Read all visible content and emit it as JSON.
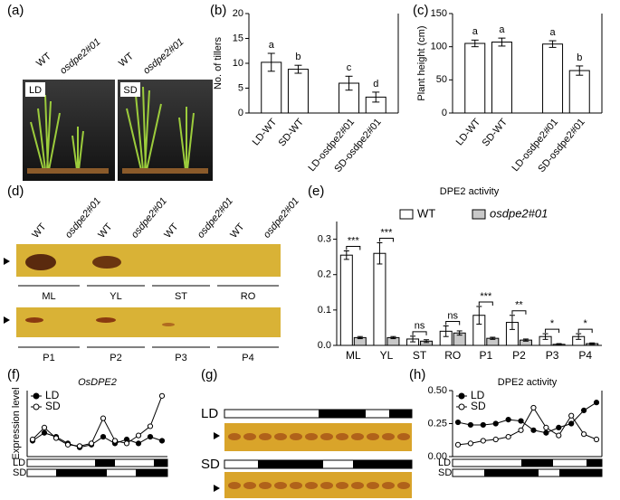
{
  "figure": {
    "panel_labels": [
      "(a)",
      "(b)",
      "(c)",
      "(d)",
      "(e)",
      "(f)",
      "(g)",
      "(h)"
    ],
    "photo": {
      "genotypes": [
        "WT",
        "osdpe2#01",
        "WT",
        "osdpe2#01"
      ],
      "conditions": [
        "LD",
        "SD"
      ]
    },
    "gel_d": {
      "lanes": [
        "WT",
        "osdpe2#01",
        "WT",
        "osdpe2#01",
        "WT",
        "osdpe2#01",
        "WT",
        "osdpe2#01"
      ],
      "row1": [
        "ML",
        "YL",
        "ST",
        "RO"
      ],
      "row2": [
        "P1",
        "P2",
        "P3",
        "P4"
      ]
    },
    "gel_g": {
      "rows": [
        "LD",
        "SD"
      ]
    },
    "light_f": [
      "LD",
      "SD"
    ],
    "light_h": [
      "LD",
      "SD"
    ]
  },
  "chart_data": [
    {
      "type": "bar",
      "ylabel": "No. of tillers",
      "categories": [
        "LD-WT",
        "SD-WT",
        "LD-osdpe2#01",
        "SD-osdpe2#01"
      ],
      "values": [
        10.2,
        8.8,
        6.0,
        3.2
      ],
      "errors": [
        1.8,
        0.8,
        1.4,
        1.0
      ],
      "letters": [
        "a",
        "b",
        "c",
        "d"
      ],
      "ylim": [
        0,
        20
      ],
      "yticks": [
        0,
        5,
        10,
        15,
        20
      ],
      "color": "#ffffff"
    },
    {
      "type": "bar",
      "ylabel": "Plant height (cm)",
      "categories": [
        "LD-WT",
        "SD-WT",
        "LD-osdpe2#01",
        "SD-osdpe2#01"
      ],
      "values": [
        105,
        107,
        104,
        64
      ],
      "errors": [
        5,
        6,
        5,
        7
      ],
      "letters": [
        "a",
        "a",
        "a",
        "b"
      ],
      "ylim": [
        0,
        150
      ],
      "yticks": [
        0,
        50,
        100,
        150
      ],
      "color": "#ffffff"
    },
    {
      "type": "bar",
      "title": "DPE2 activity",
      "categories": [
        "ML",
        "YL",
        "ST",
        "RO",
        "P1",
        "P2",
        "P3",
        "P4"
      ],
      "series": [
        {
          "name": "WT",
          "color": "#ffffff",
          "values": [
            0.255,
            0.26,
            0.018,
            0.04,
            0.085,
            0.065,
            0.025,
            0.025
          ],
          "errors": [
            0.012,
            0.03,
            0.008,
            0.015,
            0.025,
            0.02,
            0.008,
            0.008
          ]
        },
        {
          "name": "osdpe2#01",
          "color": "#c8c8c8",
          "values": [
            0.022,
            0.022,
            0.012,
            0.035,
            0.02,
            0.015,
            0.003,
            0.005
          ],
          "errors": [
            0.003,
            0.003,
            0.004,
            0.006,
            0.003,
            0.003,
            0.002,
            0.002
          ]
        }
      ],
      "significance": [
        "***",
        "***",
        "ns",
        "ns",
        "***",
        "**",
        "*",
        "*"
      ],
      "ylim": [
        0,
        0.35
      ],
      "yticks": [
        {
          "value": 0,
          "label": "0.0"
        },
        {
          "value": 0.1,
          "label": "0.1"
        },
        {
          "value": 0.2,
          "label": "0.2"
        },
        {
          "value": 0.3,
          "label": "0.3"
        }
      ]
    },
    {
      "type": "line",
      "title": "OsDPE2",
      "ylabel": "Expression level",
      "categories": [
        null,
        null,
        null,
        null,
        null,
        null,
        null,
        null,
        null,
        null,
        null,
        null
      ],
      "series": [
        {
          "name": "LD",
          "color": "#000000",
          "marker": "filled",
          "values": [
            1.2,
            1.8,
            1.5,
            1.0,
            0.7,
            0.9,
            1.5,
            1.0,
            1.3,
            1.0,
            1.5,
            1.2
          ]
        },
        {
          "name": "SD",
          "color": "#000000",
          "marker": "open",
          "values": [
            1.3,
            2.2,
            1.4,
            0.9,
            0.8,
            1.0,
            2.9,
            1.2,
            1.0,
            1.6,
            2.3,
            4.6
          ]
        }
      ],
      "ylim": [
        0,
        5
      ]
    },
    {
      "type": "line",
      "title": "DPE2 activity",
      "categories": [
        null,
        null,
        null,
        null,
        null,
        null,
        null,
        null,
        null,
        null,
        null,
        null
      ],
      "series": [
        {
          "name": "LD",
          "color": "#000000",
          "marker": "filled",
          "values": [
            0.26,
            0.24,
            0.24,
            0.25,
            0.28,
            0.27,
            0.2,
            0.18,
            0.22,
            0.25,
            0.35,
            0.41
          ]
        },
        {
          "name": "SD",
          "color": "#000000",
          "marker": "open",
          "values": [
            0.09,
            0.1,
            0.12,
            0.13,
            0.15,
            0.2,
            0.37,
            0.22,
            0.16,
            0.31,
            0.17,
            0.13
          ]
        }
      ],
      "ylim": [
        0,
        0.5
      ],
      "yticks": [
        {
          "value": 0,
          "label": "0.00"
        },
        {
          "value": 0.25,
          "label": "0.25"
        },
        {
          "value": 0.5,
          "label": "0.50"
        }
      ]
    }
  ]
}
